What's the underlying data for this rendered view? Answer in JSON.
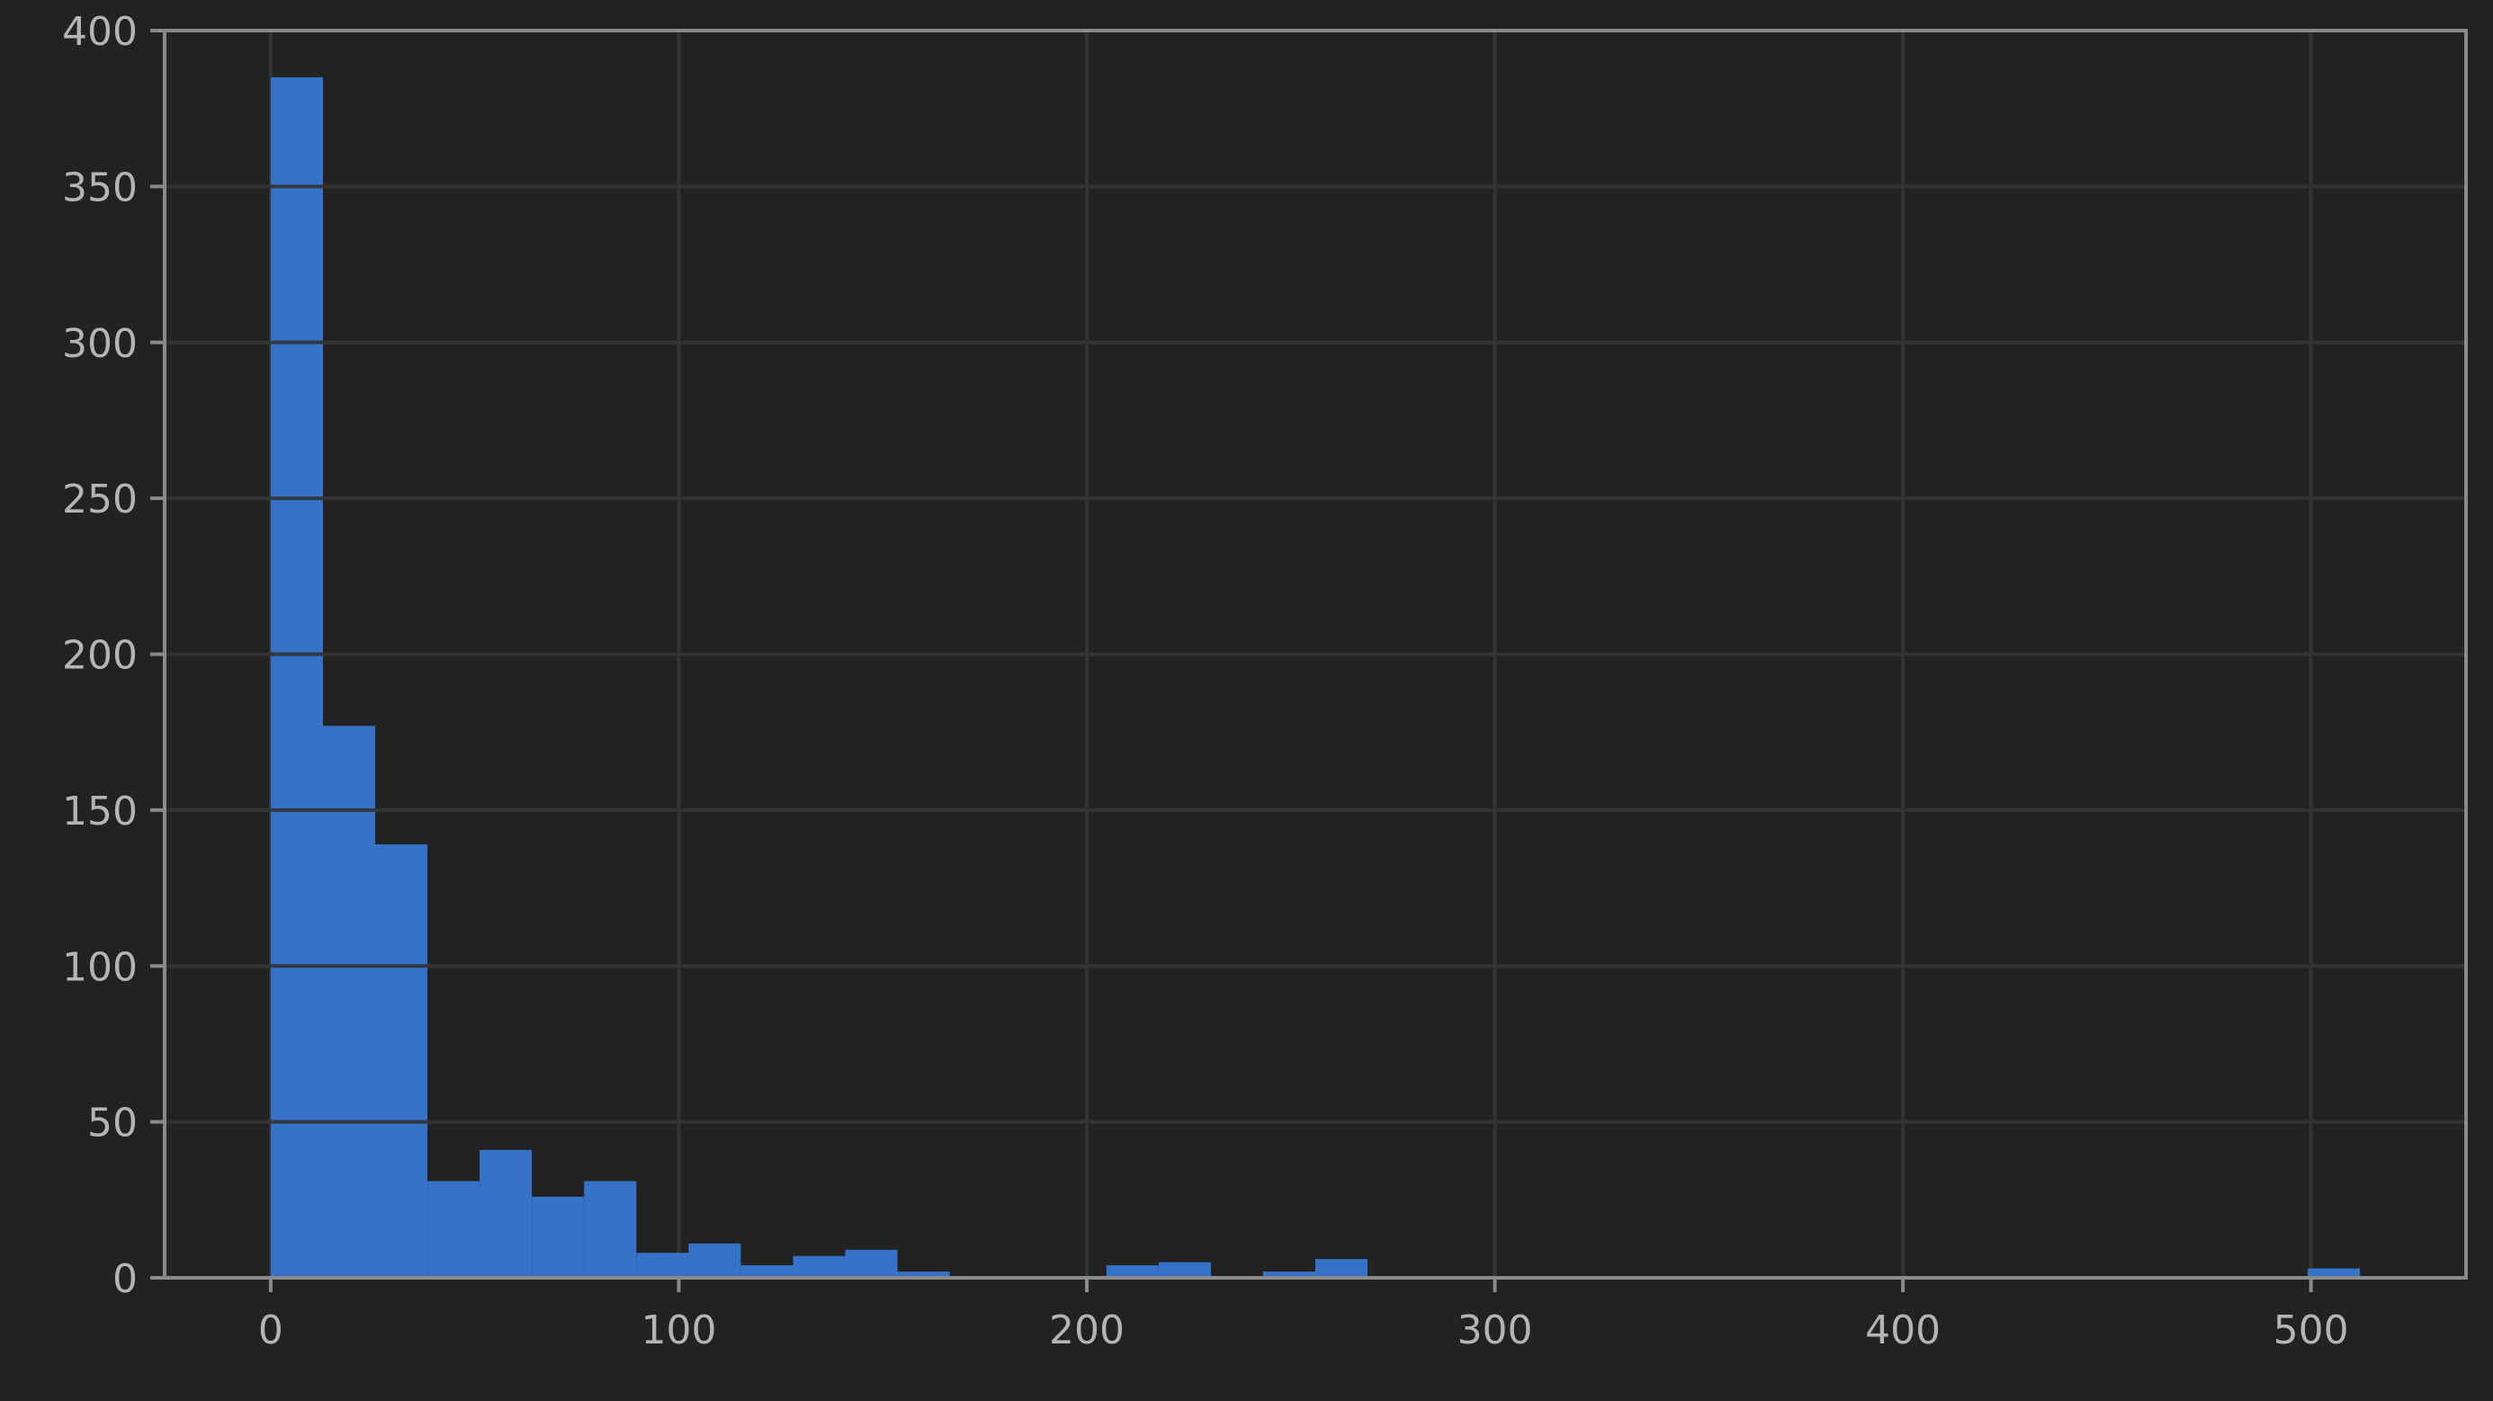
{
  "chart_data": {
    "type": "bar",
    "subtype": "histogram",
    "title": "",
    "xlabel": "",
    "ylabel": "",
    "xlim": [
      -26,
      538
    ],
    "ylim": [
      0,
      400
    ],
    "grid": true,
    "colors": {
      "background": "#222222",
      "bar": "#3673c8",
      "grid": "#333333",
      "axis": "#8a8a8a",
      "text": "#b4b4b4"
    },
    "xticks": [
      0,
      100,
      200,
      300,
      400,
      500
    ],
    "xtick_labels": [
      "0",
      "100",
      "200",
      "300",
      "400",
      "500"
    ],
    "yticks": [
      0,
      50,
      100,
      150,
      200,
      250,
      300,
      350,
      400
    ],
    "ytick_labels": [
      "0",
      "50",
      "100",
      "150",
      "200",
      "250",
      "300",
      "350",
      "400"
    ],
    "bin_width": 12.8,
    "bins": [
      {
        "x0": 0.0,
        "x1": 12.8,
        "value": 385
      },
      {
        "x0": 12.8,
        "x1": 25.6,
        "value": 177
      },
      {
        "x0": 25.6,
        "x1": 38.4,
        "value": 139
      },
      {
        "x0": 38.4,
        "x1": 51.2,
        "value": 31
      },
      {
        "x0": 51.2,
        "x1": 64.0,
        "value": 41
      },
      {
        "x0": 64.0,
        "x1": 76.8,
        "value": 26
      },
      {
        "x0": 76.8,
        "x1": 89.6,
        "value": 31
      },
      {
        "x0": 89.6,
        "x1": 102.4,
        "value": 8
      },
      {
        "x0": 102.4,
        "x1": 115.2,
        "value": 11
      },
      {
        "x0": 115.2,
        "x1": 128.0,
        "value": 4
      },
      {
        "x0": 128.0,
        "x1": 140.8,
        "value": 7
      },
      {
        "x0": 140.8,
        "x1": 153.6,
        "value": 9
      },
      {
        "x0": 153.6,
        "x1": 166.4,
        "value": 2
      },
      {
        "x0": 166.4,
        "x1": 179.2,
        "value": 0
      },
      {
        "x0": 179.2,
        "x1": 192.0,
        "value": 0
      },
      {
        "x0": 192.0,
        "x1": 204.8,
        "value": 0
      },
      {
        "x0": 204.8,
        "x1": 217.6,
        "value": 4
      },
      {
        "x0": 217.6,
        "x1": 230.4,
        "value": 5
      },
      {
        "x0": 230.4,
        "x1": 243.2,
        "value": 0
      },
      {
        "x0": 243.2,
        "x1": 256.0,
        "value": 2
      },
      {
        "x0": 256.0,
        "x1": 268.8,
        "value": 6
      },
      {
        "x0": 499.2,
        "x1": 512.0,
        "value": 3
      }
    ]
  }
}
